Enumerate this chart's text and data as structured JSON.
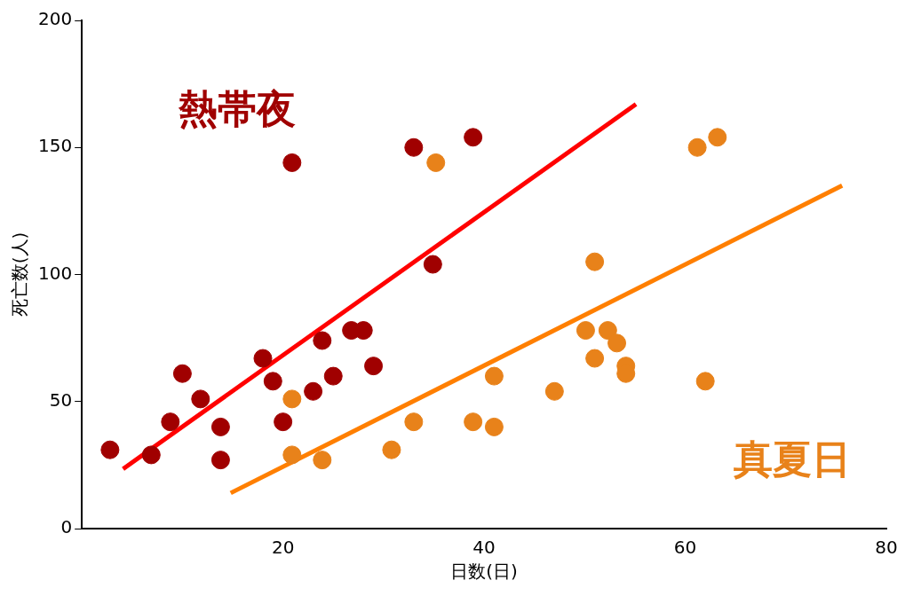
{
  "chart_data": {
    "type": "scatter",
    "xlabel": "日数(日)",
    "ylabel": "死亡数(人)",
    "xlim": [
      0,
      80
    ],
    "ylim": [
      0,
      200
    ],
    "xticks": [
      20,
      40,
      60,
      80
    ],
    "yticks": [
      0,
      50,
      100,
      150,
      200
    ],
    "grid": false,
    "legend": false,
    "marker": "circle",
    "series": [
      {
        "name": "熱帯夜",
        "color": "#a00000",
        "x": [
          2.8,
          6.9,
          8.8,
          10,
          11.8,
          13.8,
          13.8,
          18,
          19,
          20,
          20.9,
          23,
          23.9,
          25,
          26.8,
          28,
          29,
          33,
          34.9,
          38.9
        ],
        "values": [
          31,
          29,
          42,
          61,
          51,
          40,
          27,
          67,
          58,
          42,
          144,
          54,
          74,
          60,
          78,
          78,
          64,
          150,
          104,
          154
        ]
      },
      {
        "name": "真夏日",
        "color": "#e8821a",
        "x": [
          20.9,
          20.9,
          23.9,
          30.8,
          33,
          35.2,
          38.9,
          41,
          41,
          47,
          50.1,
          51,
          51,
          52.3,
          53.2,
          54.1,
          54.1,
          61.2,
          63.2,
          62
        ],
        "values": [
          51,
          29,
          27,
          31,
          42,
          144,
          42,
          40,
          60,
          54,
          78,
          105,
          67,
          78,
          73,
          64,
          61,
          150,
          154,
          58
        ]
      },
      {
        "type": "line",
        "marker": "none",
        "color": "#ff0000",
        "x": [
          4.1,
          55.1
        ],
        "values": [
          23.5,
          167
        ]
      },
      {
        "type": "line",
        "marker": "none",
        "color": "#ff7f00",
        "x": [
          14.8,
          75.6
        ],
        "values": [
          14,
          135
        ]
      }
    ]
  }
}
